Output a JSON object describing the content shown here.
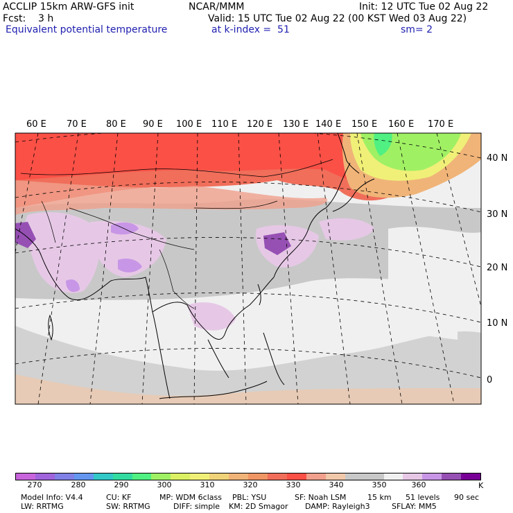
{
  "header": {
    "line1_left": "ACCLIP 15km ARW-GFS init",
    "line1_center": "NCAR/MMM",
    "line1_right": "Init: 12 UTC Tue 02 Aug 22",
    "line2_left": "Fcst:    3 h",
    "line2_right": "Valid: 15 UTC Tue 02 Aug 22 (00 KST Wed 03 Aug 22)",
    "line3_left": "Equivalent potential temperature",
    "line3_center": "at k-index =  51",
    "line3_right": "sm= 2"
  },
  "map": {
    "lon_labels": [
      "60 E",
      "70 E",
      "80 E",
      "90 E",
      "100 E",
      "110 E",
      "120 E",
      "130 E",
      "140 E",
      "150 E",
      "160 E",
      "170 E"
    ],
    "lat_labels": [
      "40 N",
      "30 N",
      "20 N",
      "10 N",
      "0"
    ]
  },
  "colorbar": {
    "colors": [
      "#c864dc",
      "#a064dc",
      "#8080e6",
      "#6496f0",
      "#32c8c8",
      "#32dca0",
      "#50f082",
      "#a0f064",
      "#dcf064",
      "#f0f078",
      "#f0d278",
      "#f0b478",
      "#f09664",
      "#f06e5a",
      "#fa5046",
      "#f0a08c",
      "#f0c8aa",
      "#c8c8c8",
      "#c8c8c8",
      "#f0f0f0",
      "#e6c8e6",
      "#c896e6",
      "#9650b4",
      "#780096"
    ],
    "tick_labels": [
      "270",
      "280",
      "290",
      "300",
      "310",
      "320",
      "330",
      "340",
      "350",
      "360"
    ],
    "unit": "K"
  },
  "footer": {
    "line1": [
      "Model Info: V4.4",
      "CU: KF",
      "MP: WDM 6class",
      "PBL: YSU",
      "SF: Noah LSM",
      "15 km",
      "51 levels",
      "90 sec"
    ],
    "line2": [
      "LW: RRTMG",
      "SW: RRTMG",
      "DIFF: simple",
      "KM: 2D Smagor",
      "DAMP: Rayleigh3",
      "SFLAY: MM5"
    ]
  }
}
